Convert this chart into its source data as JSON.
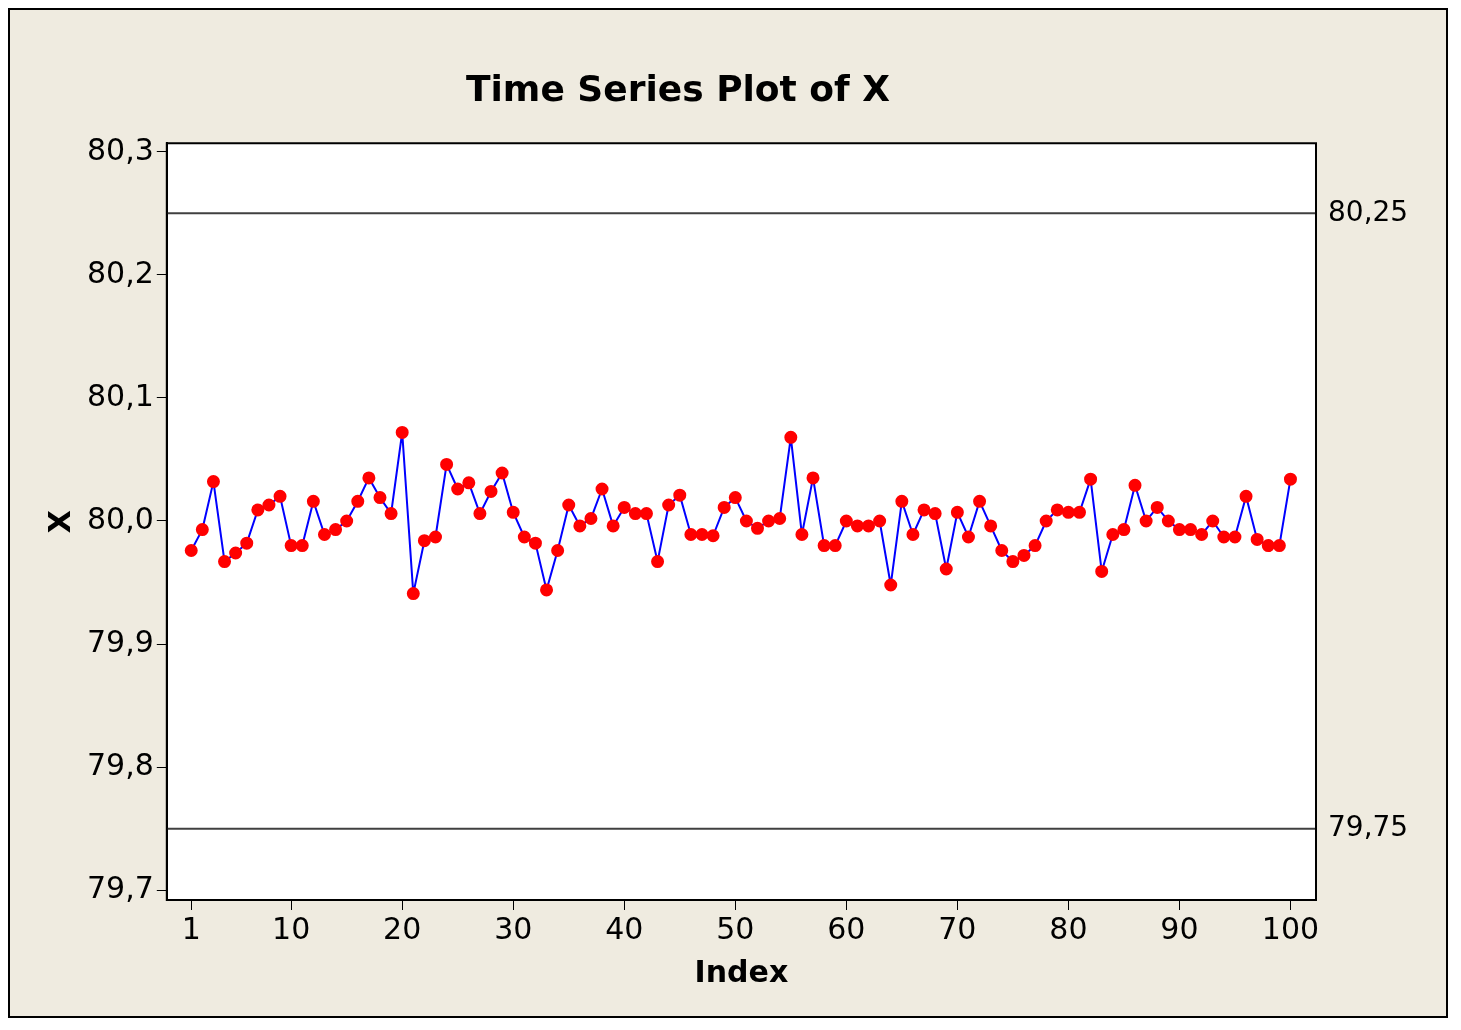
{
  "chart_data": {
    "type": "line",
    "title": "Time Series Plot of X",
    "xlabel": "Index",
    "ylabel": "X",
    "x": [
      1,
      2,
      3,
      4,
      5,
      6,
      7,
      8,
      9,
      10,
      11,
      12,
      13,
      14,
      15,
      16,
      17,
      18,
      19,
      20,
      21,
      22,
      23,
      24,
      25,
      26,
      27,
      28,
      29,
      30,
      31,
      32,
      33,
      34,
      35,
      36,
      37,
      38,
      39,
      40,
      41,
      42,
      43,
      44,
      45,
      46,
      47,
      48,
      49,
      50,
      51,
      52,
      53,
      54,
      55,
      56,
      57,
      58,
      59,
      60,
      61,
      62,
      63,
      64,
      65,
      66,
      67,
      68,
      69,
      70,
      71,
      72,
      73,
      74,
      75,
      76,
      77,
      78,
      79,
      80,
      81,
      82,
      83,
      84,
      85,
      86,
      87,
      88,
      89,
      90,
      91,
      92,
      93,
      94,
      95,
      96,
      97,
      98,
      99,
      100
    ],
    "series": [
      {
        "color": "#0000ff",
        "marker": "circle",
        "line_style": "solid",
        "colors": [
          "#ff0000",
          "#ff0000",
          "#ff0000",
          "#ff0000",
          "#ff0000",
          "#ff0000",
          "#ff0000",
          "#ff0000",
          "#ff0000",
          "#ff0000",
          "#ff0000",
          "#ff0000",
          "#ff0000",
          "#ff0000",
          "#ff0000",
          "#ff0000",
          "#ff0000",
          "#ff0000",
          "#ff0000",
          "#ff0000",
          "#ff0000",
          "#ff0000",
          "#ff0000",
          "#ff0000",
          "#ff0000",
          "#ff0000",
          "#ff0000",
          "#ff0000",
          "#ff0000",
          "#ff0000",
          "#ff0000",
          "#ff0000",
          "#ff0000",
          "#ff0000",
          "#ff0000",
          "#ff0000",
          "#ff0000",
          "#ff0000",
          "#ff0000",
          "#ff0000",
          "#ff0000",
          "#ff0000",
          "#ff0000",
          "#ff0000",
          "#ff0000",
          "#ff0000",
          "#ff0000",
          "#ff0000",
          "#ff0000",
          "#ff0000",
          "#ff0000",
          "#ff0000",
          "#ff0000",
          "#ff0000",
          "#ff0000",
          "#ff0000",
          "#ff0000",
          "#ff0000",
          "#ff0000",
          "#ff0000",
          "#ff0000",
          "#ff0000",
          "#ff0000",
          "#ff0000",
          "#ff0000",
          "#ff0000",
          "#ff0000",
          "#ff0000",
          "#ff0000",
          "#ff0000",
          "#ff0000",
          "#ff0000",
          "#ff0000",
          "#ff0000",
          "#ff0000",
          "#ff0000",
          "#ff0000",
          "#ff0000",
          "#ff0000",
          "#ff0000",
          "#ff0000",
          "#ff0000",
          "#ff0000",
          "#ff0000",
          "#ff0000",
          "#ff0000",
          "#ff0000",
          "#ff0000",
          "#ff0000",
          "#ff0000",
          "#ff0000",
          "#ff0000",
          "#ff0000",
          "#ff0000",
          "#ff0000",
          "#ff0000",
          "#ff0000",
          "#ff0000",
          "#ff0000",
          "#ff0000"
        ],
        "values": [
          79.976,
          79.993,
          80.032,
          79.967,
          79.974,
          79.982,
          80.009,
          80.013,
          80.02,
          79.98,
          79.98,
          80.016,
          79.989,
          79.993,
          80.0,
          80.016,
          80.035,
          80.019,
          80.006,
          80.072,
          79.941,
          79.984,
          79.987,
          80.046,
          80.026,
          80.031,
          80.006,
          80.024,
          80.039,
          80.007,
          79.987,
          79.982,
          79.944,
          79.976,
          80.013,
          79.996,
          80.002,
          80.026,
          79.996,
          80.011,
          80.006,
          80.006,
          79.967,
          80.013,
          80.021,
          79.989,
          79.989,
          79.988,
          80.011,
          80.019,
          80.0,
          79.994,
          80.0,
          80.002,
          80.068,
          79.989,
          80.035,
          79.98,
          79.98,
          80.0,
          79.996,
          79.996,
          80.0,
          79.948,
          80.016,
          79.989,
          80.009,
          80.006,
          79.961,
          80.007,
          79.987,
          80.016,
          79.996,
          79.976,
          79.967,
          79.972,
          79.98,
          80.0,
          80.009,
          80.007,
          80.007,
          80.034,
          79.959,
          79.989,
          79.993,
          80.029,
          80.0,
          80.011,
          80.0,
          79.993,
          79.993,
          79.989,
          80.0,
          79.987,
          79.987,
          80.02,
          79.985,
          79.98,
          79.98,
          80.034
        ]
      }
    ],
    "xlim": [
      -1.2,
      102.3
    ],
    "xticks": [
      1,
      10,
      20,
      30,
      40,
      50,
      60,
      70,
      80,
      90,
      100
    ],
    "ylim": [
      79.692,
      80.307
    ],
    "yticks": [
      {
        "value": 79.7,
        "label": "79,7"
      },
      {
        "value": 79.8,
        "label": "79,8"
      },
      {
        "value": 79.9,
        "label": "79,9"
      },
      {
        "value": 80.0,
        "label": "80,0"
      },
      {
        "value": 80.1,
        "label": "80,1"
      },
      {
        "value": 80.2,
        "label": "80,2"
      },
      {
        "value": 80.3,
        "label": "80,3"
      }
    ],
    "ref_lines": [
      {
        "axis": "y",
        "value": 80.25,
        "label": "80,25",
        "color": "#404040"
      },
      {
        "axis": "y",
        "value": 79.75,
        "label": "79,75",
        "color": "#404040"
      }
    ],
    "grid": false,
    "legend": false
  }
}
